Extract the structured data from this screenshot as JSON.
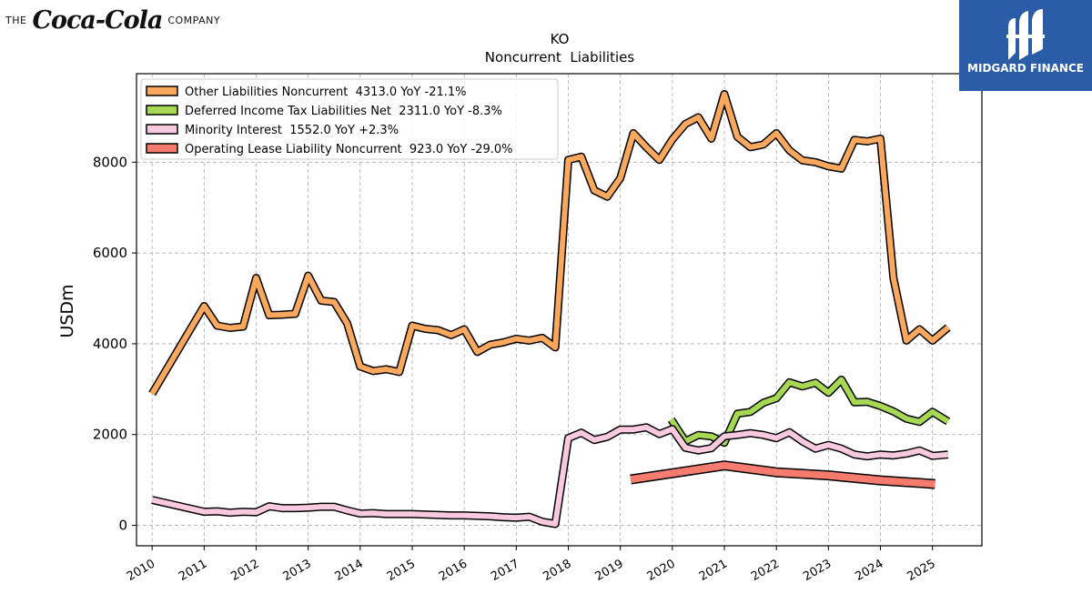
{
  "branding": {
    "company_prefix": "THE",
    "company_script": "Coca-Cola",
    "company_suffix": "COMPANY",
    "publisher": "MIDGARD FINANCE",
    "publisher_bg": "#2b5ca8"
  },
  "chart_data": {
    "type": "line",
    "title": "KO",
    "subtitle": "Noncurrent  Liabilities",
    "ylabel": "USDm",
    "xlabel": "",
    "xlim": [
      2009.7,
      2025.95
    ],
    "ylim": [
      -450,
      9950
    ],
    "yticks": [
      0,
      2000,
      4000,
      6000,
      8000
    ],
    "xticks": [
      2010,
      2011,
      2012,
      2013,
      2014,
      2015,
      2016,
      2017,
      2018,
      2019,
      2020,
      2021,
      2022,
      2023,
      2024,
      2025
    ],
    "grid": true,
    "legend_position": "top-left",
    "series": [
      {
        "name": "Other Liabilities Noncurrent",
        "legend": "Other Liabilities Noncurrent  4313.0 YoY -21.1%",
        "color": "#f9a85d",
        "points": [
          [
            2010.0,
            2900
          ],
          [
            2011.0,
            4830
          ],
          [
            2011.25,
            4400
          ],
          [
            2011.5,
            4350
          ],
          [
            2011.75,
            4380
          ],
          [
            2012.0,
            5450
          ],
          [
            2012.25,
            4630
          ],
          [
            2012.5,
            4640
          ],
          [
            2012.75,
            4660
          ],
          [
            2013.0,
            5500
          ],
          [
            2013.25,
            4950
          ],
          [
            2013.5,
            4920
          ],
          [
            2013.75,
            4450
          ],
          [
            2014.0,
            3500
          ],
          [
            2014.25,
            3400
          ],
          [
            2014.5,
            3440
          ],
          [
            2014.75,
            3380
          ],
          [
            2015.0,
            4400
          ],
          [
            2015.25,
            4330
          ],
          [
            2015.5,
            4300
          ],
          [
            2015.75,
            4190
          ],
          [
            2016.0,
            4320
          ],
          [
            2016.25,
            3820
          ],
          [
            2016.5,
            3980
          ],
          [
            2016.75,
            4030
          ],
          [
            2017.0,
            4110
          ],
          [
            2017.25,
            4070
          ],
          [
            2017.5,
            4130
          ],
          [
            2017.75,
            3920
          ],
          [
            2018.0,
            8050
          ],
          [
            2018.25,
            8120
          ],
          [
            2018.5,
            7380
          ],
          [
            2018.75,
            7240
          ],
          [
            2019.0,
            7650
          ],
          [
            2019.25,
            8640
          ],
          [
            2019.5,
            8330
          ],
          [
            2019.75,
            8050
          ],
          [
            2020.0,
            8500
          ],
          [
            2020.25,
            8840
          ],
          [
            2020.5,
            8990
          ],
          [
            2020.75,
            8520
          ],
          [
            2021.0,
            9500
          ],
          [
            2021.25,
            8560
          ],
          [
            2021.5,
            8330
          ],
          [
            2021.75,
            8390
          ],
          [
            2022.0,
            8640
          ],
          [
            2022.25,
            8260
          ],
          [
            2022.5,
            8040
          ],
          [
            2022.75,
            8000
          ],
          [
            2023.0,
            7910
          ],
          [
            2023.25,
            7860
          ],
          [
            2023.5,
            8490
          ],
          [
            2023.75,
            8460
          ],
          [
            2024.0,
            8520
          ],
          [
            2024.25,
            5450
          ],
          [
            2024.5,
            4070
          ],
          [
            2024.75,
            4320
          ],
          [
            2025.0,
            4070
          ],
          [
            2025.3,
            4360
          ]
        ]
      },
      {
        "name": "Deferred Income Tax Liabilities Net",
        "legend": "Deferred Income Tax Liabilities Net  2311.0 YoY -8.3%",
        "color": "#a6d854",
        "points": [
          [
            2019.98,
            2330
          ],
          [
            2020.25,
            1850
          ],
          [
            2020.5,
            1990
          ],
          [
            2020.75,
            1960
          ],
          [
            2021.0,
            1820
          ],
          [
            2021.25,
            2460
          ],
          [
            2021.5,
            2500
          ],
          [
            2021.75,
            2700
          ],
          [
            2022.0,
            2800
          ],
          [
            2022.25,
            3150
          ],
          [
            2022.5,
            3060
          ],
          [
            2022.75,
            3140
          ],
          [
            2023.0,
            2920
          ],
          [
            2023.25,
            3210
          ],
          [
            2023.5,
            2710
          ],
          [
            2023.75,
            2720
          ],
          [
            2024.0,
            2630
          ],
          [
            2024.25,
            2510
          ],
          [
            2024.5,
            2350
          ],
          [
            2024.75,
            2280
          ],
          [
            2025.0,
            2500
          ],
          [
            2025.3,
            2290
          ]
        ]
      },
      {
        "name": "Minority Interest",
        "legend": "Minority Interest  1552.0 YoY +2.3%",
        "color": "#f9c9e0",
        "points": [
          [
            2010.0,
            560
          ],
          [
            2011.0,
            300
          ],
          [
            2011.25,
            310
          ],
          [
            2011.5,
            280
          ],
          [
            2011.75,
            300
          ],
          [
            2012.0,
            290
          ],
          [
            2012.25,
            420
          ],
          [
            2012.5,
            380
          ],
          [
            2012.75,
            380
          ],
          [
            2013.0,
            390
          ],
          [
            2013.25,
            410
          ],
          [
            2013.5,
            410
          ],
          [
            2013.75,
            330
          ],
          [
            2014.0,
            260
          ],
          [
            2014.25,
            270
          ],
          [
            2014.5,
            250
          ],
          [
            2014.75,
            250
          ],
          [
            2015.0,
            250
          ],
          [
            2015.25,
            240
          ],
          [
            2015.5,
            230
          ],
          [
            2015.75,
            220
          ],
          [
            2016.0,
            220
          ],
          [
            2016.25,
            210
          ],
          [
            2016.5,
            200
          ],
          [
            2016.75,
            180
          ],
          [
            2017.0,
            170
          ],
          [
            2017.25,
            190
          ],
          [
            2017.5,
            80
          ],
          [
            2017.75,
            30
          ],
          [
            2018.0,
            1920
          ],
          [
            2018.25,
            2040
          ],
          [
            2018.5,
            1880
          ],
          [
            2018.75,
            1950
          ],
          [
            2019.0,
            2110
          ],
          [
            2019.25,
            2110
          ],
          [
            2019.5,
            2160
          ],
          [
            2019.75,
            2010
          ],
          [
            2020.0,
            2120
          ],
          [
            2020.25,
            1710
          ],
          [
            2020.5,
            1650
          ],
          [
            2020.75,
            1700
          ],
          [
            2021.0,
            1960
          ],
          [
            2021.25,
            1990
          ],
          [
            2021.5,
            2030
          ],
          [
            2021.75,
            1990
          ],
          [
            2022.0,
            1920
          ],
          [
            2022.25,
            2050
          ],
          [
            2022.5,
            1850
          ],
          [
            2022.75,
            1690
          ],
          [
            2023.0,
            1770
          ],
          [
            2023.25,
            1690
          ],
          [
            2023.5,
            1560
          ],
          [
            2023.75,
            1520
          ],
          [
            2024.0,
            1560
          ],
          [
            2024.25,
            1540
          ],
          [
            2024.5,
            1580
          ],
          [
            2024.75,
            1650
          ],
          [
            2025.0,
            1530
          ],
          [
            2025.3,
            1560
          ]
        ]
      },
      {
        "name": "Operating Lease Liability Noncurrent",
        "legend": "Operating Lease Liability Noncurrent  923.0 YoY -29.0%",
        "color": "#f47b6e",
        "points": [
          [
            2019.2,
            1010
          ],
          [
            2021.0,
            1320
          ],
          [
            2022.0,
            1170
          ],
          [
            2023.0,
            1100
          ],
          [
            2024.0,
            990
          ],
          [
            2025.05,
            910
          ]
        ]
      }
    ]
  }
}
